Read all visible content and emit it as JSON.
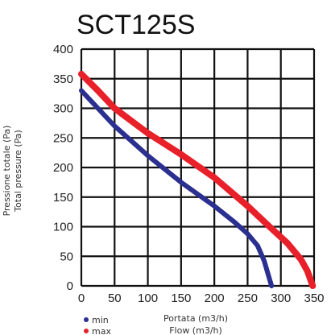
{
  "chart_data": {
    "type": "line",
    "title": "SCT125S",
    "xlabel": [
      "Portata (m3/h)",
      "Flow (m3/h)"
    ],
    "ylabel": [
      "Pressione totale (Pa)",
      "Total pressure (Pa)"
    ],
    "xlim": [
      0,
      350
    ],
    "ylim": [
      0,
      400
    ],
    "xticks": [
      0,
      50,
      100,
      150,
      200,
      250,
      300,
      350
    ],
    "yticks": [
      0,
      50,
      100,
      150,
      200,
      250,
      300,
      350,
      400
    ],
    "grid": true,
    "legend_position": "bottom-left",
    "series": [
      {
        "name": "min",
        "color": "#2b2f8f",
        "points": [
          [
            0,
            330
          ],
          [
            25,
            300
          ],
          [
            50,
            270
          ],
          [
            100,
            220
          ],
          [
            150,
            175
          ],
          [
            200,
            135
          ],
          [
            230,
            108
          ],
          [
            250,
            88
          ],
          [
            265,
            68
          ],
          [
            275,
            42
          ],
          [
            282,
            15
          ],
          [
            286,
            0
          ]
        ]
      },
      {
        "name": "max",
        "color": "#e8202a",
        "points": [
          [
            0,
            358
          ],
          [
            25,
            330
          ],
          [
            50,
            300
          ],
          [
            100,
            258
          ],
          [
            150,
            222
          ],
          [
            200,
            183
          ],
          [
            250,
            135
          ],
          [
            285,
            98
          ],
          [
            310,
            72
          ],
          [
            330,
            45
          ],
          [
            340,
            25
          ],
          [
            348,
            0
          ]
        ]
      }
    ]
  }
}
